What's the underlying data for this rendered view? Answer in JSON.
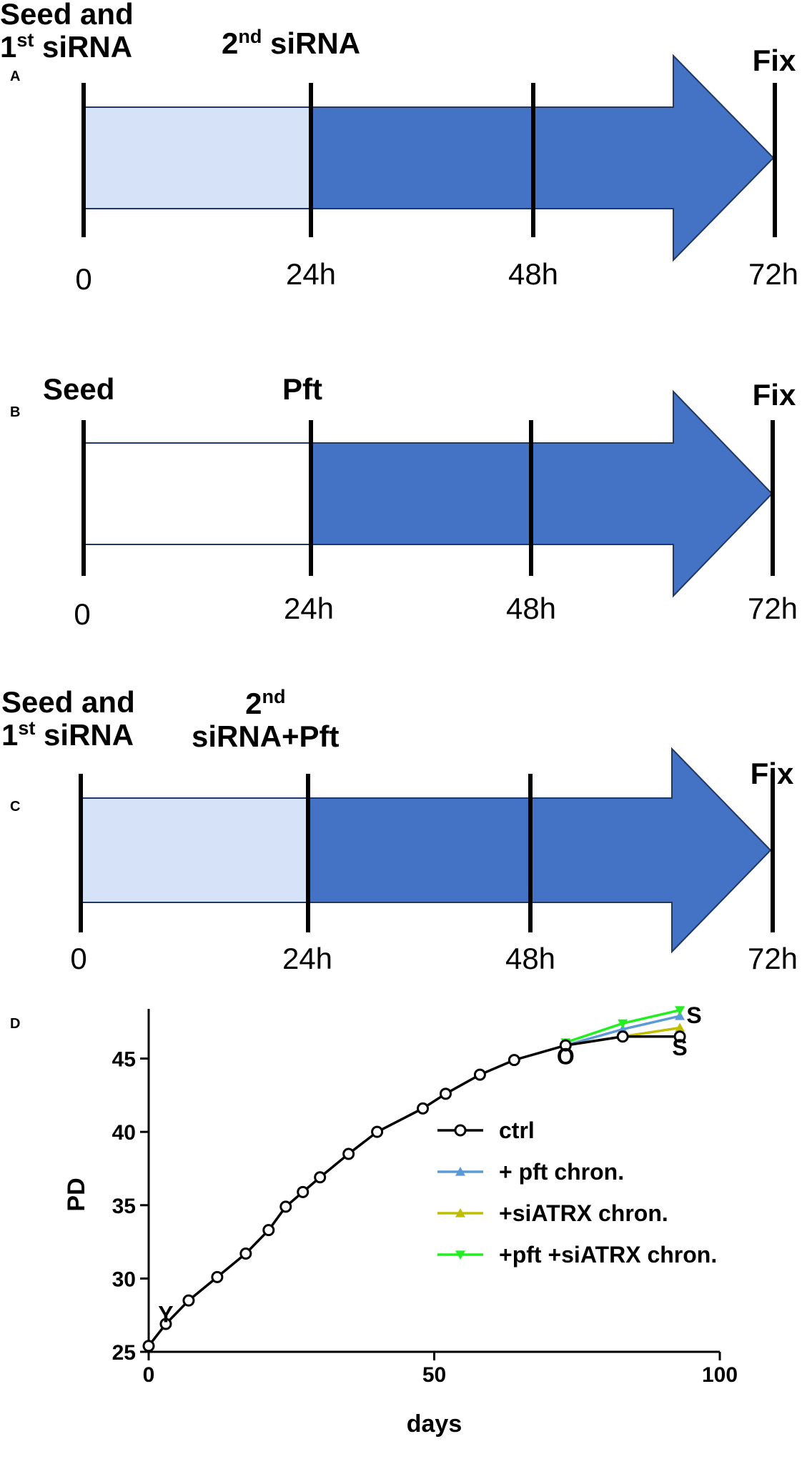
{
  "panels": {
    "a": {
      "letter": "A",
      "events": {
        "start_line1": "Seed and",
        "start_line2_num": "1",
        "start_line2_sup": "st",
        "start_line2_rest": " siRNA",
        "mid_num": "2",
        "mid_sup": "nd",
        "mid_rest": " siRNA",
        "end": "Fix"
      },
      "ticks": [
        "0",
        "24h",
        "48h",
        "72h"
      ]
    },
    "b": {
      "letter": "B",
      "events": {
        "start": "Seed",
        "mid": "Pft",
        "end": "Fix"
      },
      "ticks": [
        "0",
        "24h",
        "48h",
        "72h"
      ]
    },
    "c": {
      "letter": "C",
      "events": {
        "start_line1": "Seed and",
        "start_line2_num": "1",
        "start_line2_sup": "st",
        "start_line2_rest": " siRNA",
        "mid_num": "2",
        "mid_sup": "nd",
        "mid_line2": "siRNA+Pft",
        "end": "Fix"
      },
      "ticks": [
        "0",
        "24h",
        "48h",
        "72h"
      ]
    },
    "d": {
      "letter": "D"
    }
  },
  "colors": {
    "light_fill": "#D6E2F7",
    "dark_fill": "#4472C4",
    "outline": "#1F3864"
  },
  "chart_data": {
    "type": "line",
    "xlabel": "days",
    "ylabel": "PD",
    "xlim": [
      0,
      100
    ],
    "ylim": [
      25,
      48
    ],
    "xticks": [
      0,
      50,
      100
    ],
    "yticks": [
      25,
      30,
      35,
      40,
      45
    ],
    "grid": false,
    "legend_placement": "bottom-right",
    "series": [
      {
        "name": "ctrl",
        "color": "#000000",
        "marker": "open-circle",
        "points": [
          [
            0,
            25.4
          ],
          [
            3,
            26.9
          ],
          [
            7,
            28.5
          ],
          [
            12,
            30.1
          ],
          [
            17,
            31.7
          ],
          [
            21,
            33.3
          ],
          [
            24,
            34.9
          ],
          [
            27,
            35.9
          ],
          [
            30,
            36.9
          ],
          [
            35,
            38.5
          ],
          [
            40,
            40.0
          ],
          [
            48,
            41.6
          ],
          [
            52,
            42.6
          ],
          [
            58,
            43.9
          ],
          [
            64,
            44.9
          ],
          [
            73,
            45.9
          ],
          [
            83,
            46.5
          ],
          [
            93,
            46.5
          ]
        ]
      },
      {
        "name": "+ pft chron.",
        "color": "#5B9BD5",
        "marker": "triangle-up",
        "points": [
          [
            73,
            45.9
          ],
          [
            83,
            47.0
          ],
          [
            93,
            47.9
          ]
        ]
      },
      {
        "name": "+siATRX chron.",
        "color": "#BFBF00",
        "marker": "triangle-up",
        "points": [
          [
            73,
            45.9
          ],
          [
            83,
            46.5
          ],
          [
            93,
            47.1
          ]
        ]
      },
      {
        "name": "+pft +siATRX chron.",
        "color": "#22EE22",
        "marker": "triangle-down",
        "points": [
          [
            73,
            46.1
          ],
          [
            83,
            47.4
          ],
          [
            93,
            48.3
          ]
        ]
      }
    ],
    "annotations": [
      {
        "text": "Y",
        "x": 3,
        "y": 27.6
      },
      {
        "text": "O",
        "x": 73,
        "y": 45.2
      },
      {
        "text": "S",
        "x": 93,
        "y": 45.8
      },
      {
        "text": "S",
        "x": 95.5,
        "y": 48.0
      }
    ]
  }
}
